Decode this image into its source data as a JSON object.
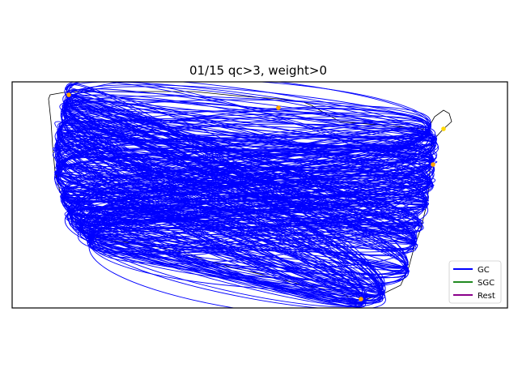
{
  "chart_data": {
    "type": "line",
    "title": "01/15 qc>3, weight>0",
    "xlabel": "",
    "ylabel": "",
    "grid": false,
    "legend_position": "lower-right",
    "series": [
      {
        "name": "GC",
        "color": "#0000ff"
      },
      {
        "name": "SGC",
        "color": "#228b22"
      },
      {
        "name": "Rest",
        "color": "#8b008b"
      }
    ],
    "map_region": "contiguous United States",
    "marker_colors": {
      "station": "#ffa500",
      "highlight": "#ffd700"
    }
  }
}
